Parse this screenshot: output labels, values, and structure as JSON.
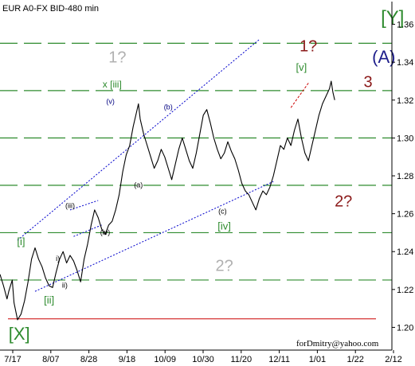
{
  "chart_data": {
    "type": "line",
    "title": "EUR A0-FX BID-480 min",
    "watermark": "forDmitry@yahoo.com",
    "xlabel": "",
    "ylabel": "",
    "ylim": [
      1.188,
      1.372
    ],
    "x_ticks": [
      "7/17",
      "8/07",
      "8/28",
      "9/18",
      "10/09",
      "10/30",
      "11/20",
      "12/11",
      "1/01",
      "1/22",
      "2/12"
    ],
    "y_ticks": [
      "1.20",
      "1.22",
      "1.24",
      "1.26",
      "1.28",
      "1.30",
      "1.32",
      "1.34",
      "1.36"
    ],
    "y_tick_values": [
      1.2,
      1.22,
      1.24,
      1.26,
      1.28,
      1.3,
      1.32,
      1.34,
      1.36
    ],
    "dashed_levels": [
      1.225,
      1.25,
      1.275,
      1.3,
      1.325,
      1.35
    ],
    "red_level": 1.2045,
    "series": [
      {
        "values": [
          [
            0,
            1.228
          ],
          [
            2,
            1.222
          ],
          [
            4,
            1.215
          ],
          [
            5,
            1.219
          ],
          [
            7,
            1.225
          ],
          [
            8,
            1.213
          ],
          [
            10,
            1.204
          ],
          [
            12,
            1.207
          ],
          [
            14,
            1.214
          ],
          [
            16,
            1.224
          ],
          [
            18,
            1.236
          ],
          [
            20,
            1.242
          ],
          [
            22,
            1.236
          ],
          [
            24,
            1.232
          ],
          [
            26,
            1.226
          ],
          [
            28,
            1.222
          ],
          [
            30,
            1.221
          ],
          [
            32,
            1.229
          ],
          [
            34,
            1.236
          ],
          [
            36,
            1.24
          ],
          [
            38,
            1.234
          ],
          [
            40,
            1.238
          ],
          [
            42,
            1.235
          ],
          [
            44,
            1.23
          ],
          [
            46,
            1.224
          ],
          [
            48,
            1.236
          ],
          [
            50,
            1.244
          ],
          [
            52,
            1.254
          ],
          [
            54,
            1.262
          ],
          [
            56,
            1.258
          ],
          [
            58,
            1.252
          ],
          [
            60,
            1.249
          ],
          [
            62,
            1.254
          ],
          [
            64,
            1.256
          ],
          [
            66,
            1.262
          ],
          [
            68,
            1.27
          ],
          [
            70,
            1.282
          ],
          [
            72,
            1.291
          ],
          [
            74,
            1.296
          ],
          [
            76,
            1.306
          ],
          [
            78,
            1.314
          ],
          [
            79,
            1.318
          ],
          [
            80,
            1.31
          ],
          [
            82,
            1.302
          ],
          [
            84,
            1.296
          ],
          [
            86,
            1.29
          ],
          [
            88,
            1.284
          ],
          [
            90,
            1.288
          ],
          [
            92,
            1.294
          ],
          [
            94,
            1.29
          ],
          [
            96,
            1.284
          ],
          [
            98,
            1.278
          ],
          [
            100,
            1.286
          ],
          [
            102,
            1.294
          ],
          [
            104,
            1.3
          ],
          [
            106,
            1.294
          ],
          [
            108,
            1.288
          ],
          [
            110,
            1.284
          ],
          [
            112,
            1.292
          ],
          [
            114,
            1.302
          ],
          [
            116,
            1.312
          ],
          [
            118,
            1.315
          ],
          [
            120,
            1.308
          ],
          [
            122,
            1.3
          ],
          [
            124,
            1.294
          ],
          [
            126,
            1.289
          ],
          [
            128,
            1.292
          ],
          [
            130,
            1.298
          ],
          [
            132,
            1.293
          ],
          [
            134,
            1.289
          ],
          [
            136,
            1.283
          ],
          [
            138,
            1.276
          ],
          [
            140,
            1.272
          ],
          [
            142,
            1.27
          ],
          [
            144,
            1.266
          ],
          [
            146,
            1.262
          ],
          [
            148,
            1.268
          ],
          [
            150,
            1.272
          ],
          [
            152,
            1.27
          ],
          [
            154,
            1.274
          ],
          [
            156,
            1.28
          ],
          [
            158,
            1.288
          ],
          [
            160,
            1.296
          ],
          [
            162,
            1.294
          ],
          [
            164,
            1.3
          ],
          [
            166,
            1.296
          ],
          [
            168,
            1.304
          ],
          [
            170,
            1.31
          ],
          [
            172,
            1.3
          ],
          [
            174,
            1.292
          ],
          [
            176,
            1.288
          ],
          [
            178,
            1.296
          ],
          [
            180,
            1.304
          ],
          [
            182,
            1.312
          ],
          [
            184,
            1.318
          ],
          [
            186,
            1.322
          ],
          [
            188,
            1.326
          ],
          [
            189,
            1.33
          ],
          [
            190,
            1.324
          ],
          [
            191,
            1.32
          ]
        ]
      }
    ],
    "annotations": [
      {
        "text": "[Y]",
        "x": 224,
        "y": 1.363,
        "color": "#2e8b2e",
        "size": 24
      },
      {
        "text": "(A)",
        "x": 219,
        "y": 1.342,
        "color": "#1f1f8c",
        "size": 22
      },
      {
        "text": "3",
        "x": 210,
        "y": 1.329,
        "color": "#8b1a1a",
        "size": 20
      },
      {
        "text": "1?",
        "x": 176,
        "y": 1.348,
        "color": "#8b1a1a",
        "size": 20
      },
      {
        "text": "[v]",
        "x": 172,
        "y": 1.337,
        "color": "#2e8b2e",
        "size": 13
      },
      {
        "text": "1?",
        "x": 67,
        "y": 1.342,
        "color": "#b0b0b0",
        "size": 20
      },
      {
        "text": "x [iii]",
        "x": 64,
        "y": 1.328,
        "color": "#2e8b2e",
        "size": 12
      },
      {
        "text": "(v)",
        "x": 63,
        "y": 1.319,
        "color": "#000080",
        "size": 9
      },
      {
        "text": "(b)",
        "x": 96,
        "y": 1.316,
        "color": "#000080",
        "size": 9
      },
      {
        "text": "(a)",
        "x": 79,
        "y": 1.275,
        "color": "#000000",
        "size": 9
      },
      {
        "text": "(c)",
        "x": 127,
        "y": 1.261,
        "color": "#000000",
        "size": 9
      },
      {
        "text": "[iv]",
        "x": 128,
        "y": 1.253,
        "color": "#2e8b2e",
        "size": 13
      },
      {
        "text": "2?",
        "x": 196,
        "y": 1.266,
        "color": "#8b1a1a",
        "size": 20
      },
      {
        "text": "2?",
        "x": 128,
        "y": 1.232,
        "color": "#b0b0b0",
        "size": 20
      },
      {
        "text": "(iii)",
        "x": 40,
        "y": 1.264,
        "color": "#000000",
        "size": 9
      },
      {
        "text": "(iv)",
        "x": 60,
        "y": 1.25,
        "color": "#000000",
        "size": 9
      },
      {
        "text": "[i]",
        "x": 12,
        "y": 1.245,
        "color": "#2e8b2e",
        "size": 13
      },
      {
        "text": "i)",
        "x": 33,
        "y": 1.236,
        "color": "#000000",
        "size": 9
      },
      {
        "text": "ii)",
        "x": 37,
        "y": 1.222,
        "color": "#000000",
        "size": 9
      },
      {
        "text": "[ii]",
        "x": 28,
        "y": 1.214,
        "color": "#2e8b2e",
        "size": 13
      },
      {
        "text": "[X]",
        "x": 11,
        "y": 1.196,
        "color": "#2e8b2e",
        "size": 22
      }
    ],
    "channel_lines": [
      {
        "from": [
          10,
          1.246
        ],
        "to": [
          148,
          1.352
        ]
      },
      {
        "from": [
          20,
          1.219
        ],
        "to": [
          156,
          1.277
        ]
      },
      {
        "from": [
          40,
          1.262
        ],
        "to": [
          56,
          1.267
        ]
      },
      {
        "from": [
          42,
          1.248
        ],
        "to": [
          58,
          1.254
        ]
      }
    ],
    "projection": {
      "from": [
        166,
        1.316
      ],
      "to": [
        176,
        1.329
      ],
      "color": "#cc0000"
    },
    "grid": false,
    "colors": {
      "price": "#000000",
      "dashed": "#2e8b2e",
      "channel": "#0000cc",
      "level": "#cc0000"
    }
  }
}
